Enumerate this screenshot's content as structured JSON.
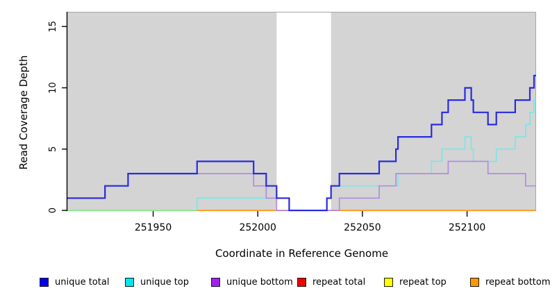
{
  "axes": {
    "xlabel": "Coordinate in Reference Genome",
    "ylabel": "Read Coverage Depth",
    "xticks": [
      251950,
      252000,
      252050,
      252100
    ],
    "yticks": [
      0,
      5,
      10,
      15
    ],
    "xlim": [
      251909,
      252133
    ],
    "ylim": [
      0,
      16.2
    ],
    "axis_color": "#000000",
    "tick_label_size": 13
  },
  "panel": {
    "background": "#d4d4d4",
    "border_color": "#a6a6a6",
    "gap_band": {
      "from": 252009,
      "to": 252035,
      "color": "#ffffff"
    }
  },
  "chart_data": {
    "type": "line",
    "step": true,
    "title": "",
    "xlabel": "Coordinate in Reference Genome",
    "ylabel": "Read Coverage Depth",
    "xlim": [
      251909,
      252133
    ],
    "ylim": [
      0,
      16.2
    ],
    "grid": false,
    "note_band_no_data": [
      252009,
      252035
    ],
    "series": [
      {
        "name": "repeat top",
        "color": "#eeee00",
        "width": 1.6,
        "points": [
          [
            251909,
            0
          ]
        ]
      },
      {
        "name": "repeat total",
        "color": "#cc0000",
        "width": 1.6,
        "points": [
          [
            251909,
            0
          ]
        ]
      },
      {
        "name": "unique top",
        "color": "#79e6e8",
        "width": 1.7,
        "points": [
          [
            251909,
            0
          ],
          [
            251971,
            1
          ],
          [
            252015,
            0
          ],
          [
            252033,
            1
          ],
          [
            252035,
            2
          ],
          [
            252067,
            3
          ],
          [
            252083,
            4
          ],
          [
            252088,
            5
          ],
          [
            252099,
            6
          ],
          [
            252102,
            5
          ],
          [
            252103,
            4
          ],
          [
            252114,
            5
          ],
          [
            252123,
            6
          ],
          [
            252128,
            7
          ],
          [
            252130,
            8
          ],
          [
            252132,
            9
          ]
        ]
      },
      {
        "name": "baseline",
        "color": "#90ee90",
        "width": 1.7,
        "points": [
          [
            251909,
            0
          ]
        ],
        "x_end": 251971
      },
      {
        "name": "repeat bottom",
        "color": "#ff9d2e",
        "width": 2,
        "points": [
          [
            251971,
            0
          ]
        ]
      },
      {
        "name": "unique bottom",
        "color": "#b28be0",
        "width": 1.7,
        "points": [
          [
            251909,
            1
          ],
          [
            251927,
            2
          ],
          [
            251938,
            3
          ],
          [
            251998,
            2
          ],
          [
            252004,
            1
          ],
          [
            252009,
            0
          ],
          [
            252039,
            1
          ],
          [
            252058,
            2
          ],
          [
            252066,
            3
          ],
          [
            252091,
            4
          ],
          [
            252110,
            3
          ],
          [
            252128,
            2
          ]
        ]
      },
      {
        "name": "unique total",
        "color": "#2a2ae0",
        "width": 2.2,
        "points": [
          [
            251909,
            1
          ],
          [
            251927,
            2
          ],
          [
            251938,
            3
          ],
          [
            251971,
            4
          ],
          [
            251998,
            3
          ],
          [
            252004,
            2
          ],
          [
            252009,
            1
          ],
          [
            252015,
            0
          ],
          [
            252033,
            1
          ],
          [
            252035,
            2
          ],
          [
            252039,
            3
          ],
          [
            252058,
            4
          ],
          [
            252066,
            5
          ],
          [
            252067,
            6
          ],
          [
            252083,
            7
          ],
          [
            252088,
            8
          ],
          [
            252091,
            9
          ],
          [
            252099,
            10
          ],
          [
            252102,
            9
          ],
          [
            252103,
            8
          ],
          [
            252110,
            7
          ],
          [
            252114,
            8
          ],
          [
            252123,
            9
          ],
          [
            252130,
            10
          ],
          [
            252132,
            11
          ]
        ]
      }
    ],
    "legend_position": "bottom"
  },
  "legend": {
    "items": [
      {
        "label": "unique total",
        "color": "#0000ee"
      },
      {
        "label": "unique top",
        "color": "#00e5ee"
      },
      {
        "label": "unique bottom",
        "color": "#a020f0"
      },
      {
        "label": "repeat total",
        "color": "#ee0000"
      },
      {
        "label": "repeat top",
        "color": "#ffff00"
      },
      {
        "label": "repeat bottom",
        "color": "#ff9900"
      }
    ]
  }
}
